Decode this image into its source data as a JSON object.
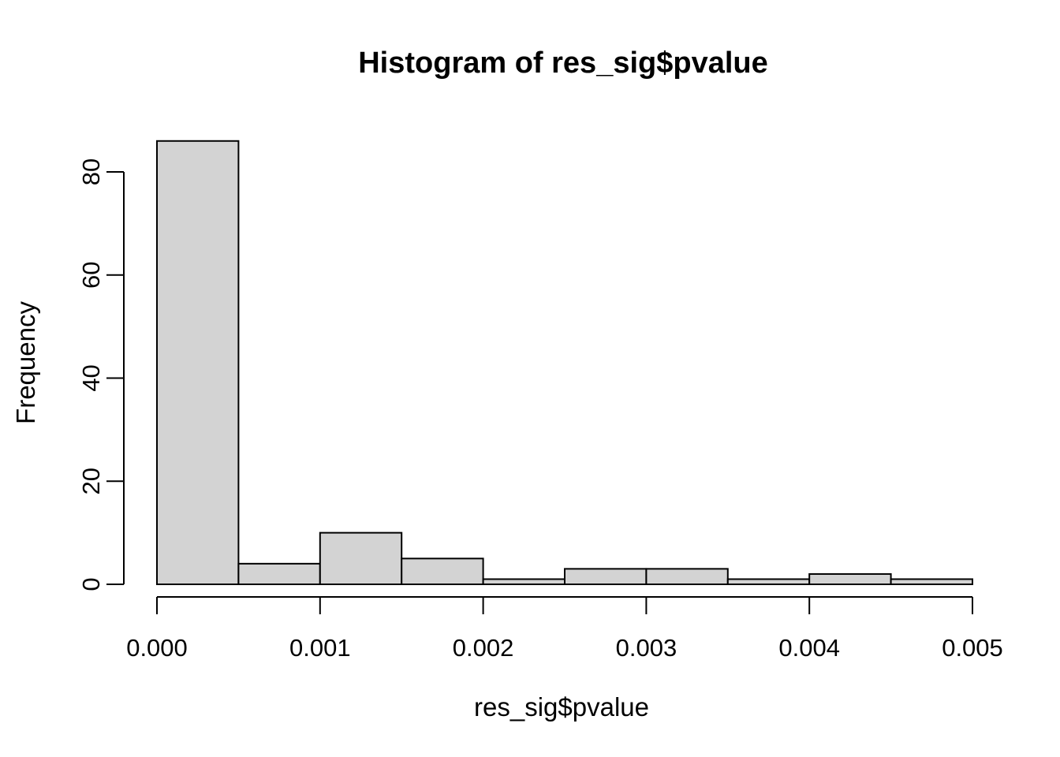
{
  "figure": {
    "background": "#ffffff"
  },
  "chart_data": {
    "type": "bar",
    "subtype": "histogram",
    "title": "Histogram of res_sig$pvalue",
    "xlabel": "res_sig$pvalue",
    "ylabel": "Frequency",
    "bin_edges": [
      0.0,
      0.0005,
      0.001,
      0.0015,
      0.002,
      0.0025,
      0.003,
      0.0035,
      0.004,
      0.0045,
      0.005
    ],
    "counts": [
      86,
      4,
      10,
      5,
      1,
      3,
      3,
      1,
      2,
      1
    ],
    "xlim": [
      0.0,
      0.005
    ],
    "ylim": [
      0,
      86
    ],
    "x_ticks": {
      "values": [
        0.0,
        0.001,
        0.002,
        0.003,
        0.004,
        0.005
      ],
      "labels": [
        "0.000",
        "0.001",
        "0.002",
        "0.003",
        "0.004",
        "0.005"
      ]
    },
    "y_ticks": {
      "values": [
        0,
        20,
        40,
        60,
        80
      ],
      "labels": [
        "0",
        "20",
        "40",
        "60",
        "80"
      ]
    },
    "grid": false,
    "legend": null,
    "bar_fill": "#d3d3d3",
    "bar_stroke": "#000000",
    "axis_color": "#000000"
  }
}
